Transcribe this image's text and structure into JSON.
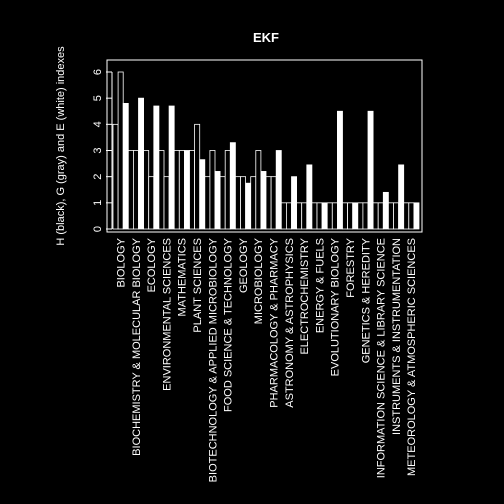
{
  "chart_data": {
    "type": "bar",
    "title": "EKF",
    "ylabel": "H (black), G (gray) and E (white) indexes",
    "xlabel": "",
    "ylim": [
      0,
      6.3
    ],
    "yticks": [
      0,
      1,
      2,
      3,
      4,
      5,
      6
    ],
    "grid": false,
    "categories": [
      "BIOLOGY",
      "BIOCHEMISTRY & MOLECULAR BIOLOGY",
      "ECOLOGY",
      "ENVIRONMENTAL SCIENCES",
      "MATHEMATICS",
      "PLANT SCIENCES",
      "BIOTECHNOLOGY & APPLIED MICROBIOLOGY",
      "FOOD SCIENCE & TECHNOLOGY",
      "GEOLOGY",
      "MICROBIOLOGY",
      "PHARMACOLOGY & PHARMACY",
      "ASTRONOMY & ASTROPHYSICS",
      "ELECTROCHEMISTRY",
      "ENERGY & FUELS",
      "EVOLUTIONARY BIOLOGY",
      "FORESTRY",
      "GENETICS & HEREDITY",
      "INFORMATION SCIENCE & LIBRARY SCIENCE",
      "INSTRUMENTS & INSTRUMENTATION",
      "METEOROLOGY & ATMOSPHERIC SCIENCES"
    ],
    "series": [
      {
        "name": "H",
        "color": "#000000",
        "values": [
          4,
          3,
          3,
          3,
          3,
          3,
          2,
          2,
          2,
          2,
          2,
          1,
          1,
          1,
          1,
          1,
          1,
          1,
          1,
          1
        ]
      },
      {
        "name": "G",
        "color": "#000000",
        "values": [
          6,
          3,
          2,
          2,
          3,
          4,
          3,
          3,
          2,
          3,
          2,
          1,
          1,
          1,
          1,
          1,
          1,
          1,
          1,
          1
        ]
      },
      {
        "name": "E",
        "color": "#ffffff",
        "values": [
          4.8,
          5,
          4.7,
          4.7,
          3,
          2.65,
          2.2,
          3.3,
          1.75,
          2.2,
          3,
          2,
          2.45,
          1,
          4.5,
          1,
          4.5,
          1.4,
          2.45,
          1
        ]
      }
    ]
  }
}
